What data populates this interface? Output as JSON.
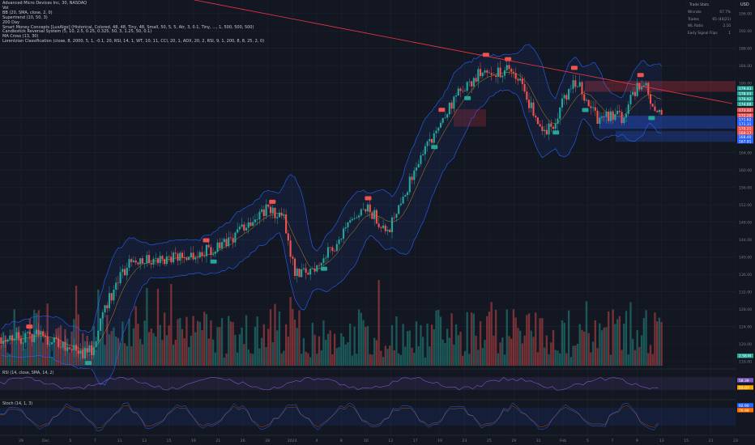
{
  "legend": {
    "symbol": "Advanced Micro Devices Inc, 30, NASDAQ",
    "indicators": [
      "Vol",
      "BB (20, SMA, close, 2, 0)",
      "Supertrend (10, 50, 3)",
      "200 Day",
      "Smart Money Concepts [LuxAlgo] (Historical, Colored, 48, 48, Tiny, 48, Small, 50, 5, 5, Atr, 3, 0.1, Tiny, ..., 1, 500, 500, 500)",
      "Candlestick Reversal System (5, 10, 2.5, 0.25, 0.325, 50, 3, 1.25, 50, 0.1)",
      "MA Cross (13, 30)",
      "Lorentzian Classification (close, 8, 2000, 5, 1, -0.1, 20, RSI, 14, 1, WT, 10, 11, CCI, 20, 1, ADX, 20, 2, RSI, 9, 1, 200, 8, 8, 25, 2, 0)"
    ]
  },
  "currency": "USD",
  "trade_stats": {
    "title": "Trade Stats",
    "rows": [
      {
        "label": "Winrate",
        "value": "67.7%"
      },
      {
        "label": "Trades",
        "value": "65 (44|21)"
      },
      {
        "label": "WL Ratio",
        "value": "2.10"
      },
      {
        "label": "Early Signal Flips",
        "value": "1"
      }
    ]
  },
  "rsi_label": "RSI (14, close, SMA, 14, 2)",
  "stoch_label": "Stoch (14, 1, 3)",
  "colors": {
    "background": "#131722",
    "up": "#26a69a",
    "down": "#ef5350",
    "band": "#2962ff",
    "trendline": "#f23645",
    "rsi": "#7e57c2",
    "stoch": "#2962ff"
  },
  "chart_data": {
    "type": "candlestick",
    "title": "Advanced Micro Devices Inc, 30, NASDAQ",
    "currency": "USD",
    "interval": "30",
    "x_tick_labels": [
      "29",
      "Dec",
      "5",
      "7",
      "11",
      "13",
      "15",
      "19",
      "21",
      "26",
      "28",
      "2024",
      "4",
      "8",
      "10",
      "12",
      "17",
      "19",
      "23",
      "25",
      "29",
      "31",
      "Feb",
      "5",
      "7",
      "9",
      "13",
      "15",
      "21",
      "23"
    ],
    "y_tick_labels": [
      "196.00",
      "192.00",
      "188.00",
      "184.00",
      "180.00",
      "176.00",
      "172.00",
      "168.00",
      "164.00",
      "160.00",
      "156.00",
      "152.00",
      "148.00",
      "144.00",
      "140.00",
      "136.00",
      "132.00",
      "128.00",
      "124.00",
      "120.00",
      "116.00"
    ],
    "ylim": [
      115,
      198
    ],
    "price_path": [
      {
        "x": 0,
        "y": 121.5
      },
      {
        "x": 0.02,
        "y": 122
      },
      {
        "x": 0.035,
        "y": 121
      },
      {
        "x": 0.05,
        "y": 122.5
      },
      {
        "x": 0.08,
        "y": 120
      },
      {
        "x": 0.11,
        "y": 118
      },
      {
        "x": 0.125,
        "y": 118.5
      },
      {
        "x": 0.14,
        "y": 128
      },
      {
        "x": 0.16,
        "y": 134
      },
      {
        "x": 0.18,
        "y": 140
      },
      {
        "x": 0.21,
        "y": 139
      },
      {
        "x": 0.24,
        "y": 140
      },
      {
        "x": 0.27,
        "y": 141
      },
      {
        "x": 0.3,
        "y": 142
      },
      {
        "x": 0.33,
        "y": 147
      },
      {
        "x": 0.36,
        "y": 151
      },
      {
        "x": 0.385,
        "y": 149
      },
      {
        "x": 0.4,
        "y": 137
      },
      {
        "x": 0.415,
        "y": 136
      },
      {
        "x": 0.43,
        "y": 138
      },
      {
        "x": 0.455,
        "y": 143
      },
      {
        "x": 0.48,
        "y": 148
      },
      {
        "x": 0.5,
        "y": 151
      },
      {
        "x": 0.515,
        "y": 148
      },
      {
        "x": 0.53,
        "y": 147
      },
      {
        "x": 0.545,
        "y": 154
      },
      {
        "x": 0.56,
        "y": 158
      },
      {
        "x": 0.575,
        "y": 165
      },
      {
        "x": 0.59,
        "y": 168
      },
      {
        "x": 0.605,
        "y": 173
      },
      {
        "x": 0.62,
        "y": 177
      },
      {
        "x": 0.64,
        "y": 180
      },
      {
        "x": 0.66,
        "y": 184
      },
      {
        "x": 0.675,
        "y": 182
      },
      {
        "x": 0.69,
        "y": 183
      },
      {
        "x": 0.705,
        "y": 181
      },
      {
        "x": 0.72,
        "y": 175
      },
      {
        "x": 0.735,
        "y": 170
      },
      {
        "x": 0.75,
        "y": 169
      },
      {
        "x": 0.765,
        "y": 176
      },
      {
        "x": 0.78,
        "y": 181
      },
      {
        "x": 0.8,
        "y": 175
      },
      {
        "x": 0.815,
        "y": 171
      },
      {
        "x": 0.83,
        "y": 173
      },
      {
        "x": 0.845,
        "y": 172
      },
      {
        "x": 0.86,
        "y": 178
      },
      {
        "x": 0.875,
        "y": 180
      },
      {
        "x": 0.89,
        "y": 172
      },
      {
        "x": 0.9,
        "y": 174
      }
    ],
    "buy_labels": [
      0.12,
      0.29,
      0.44,
      0.59,
      0.635,
      0.755,
      0.795,
      0.885
    ],
    "sell_labels": [
      0.04,
      0.28,
      0.37,
      0.5,
      0.6,
      0.66,
      0.69,
      0.78,
      0.87
    ],
    "price_tags": [
      {
        "text": "179.43",
        "y": 178.8,
        "color": "#26a69a"
      },
      {
        "text": "178.03",
        "y": 177.6,
        "color": "#26a69a"
      },
      {
        "text": "176.42",
        "y": 176.4,
        "color": "#26a69a"
      },
      {
        "text": "174.88",
        "y": 175.2,
        "color": "#26a69a"
      },
      {
        "text": "173.32",
        "y": 173.8,
        "color": "#ef5350"
      },
      {
        "text": "172.29",
        "y": 172.6,
        "color": "#ef5350"
      },
      {
        "text": "171.62",
        "y": 171.6,
        "color": "#2962ff"
      },
      {
        "text": "171.31",
        "y": 170.6,
        "color": "#2962ff"
      },
      {
        "text": "170.21",
        "y": 169.6,
        "color": "#ef5350"
      },
      {
        "text": "169.17",
        "y": 168.6,
        "color": "#ef5350"
      },
      {
        "text": "168.40",
        "y": 167.6,
        "color": "#2962ff"
      },
      {
        "text": "167.91",
        "y": 166.6,
        "color": "#2962ff"
      }
    ],
    "volume_tag": "2.58 M",
    "rsi": {
      "label": "RSI (14, close, SMA, 14, 2)",
      "tags": [
        "58.39",
        "55.07"
      ],
      "ylim": [
        20,
        80
      ]
    },
    "stoch": {
      "label": "Stoch (14, 1, 3)",
      "tags": [
        "92.90",
        "76.99"
      ],
      "ylim": [
        0,
        100
      ]
    }
  }
}
